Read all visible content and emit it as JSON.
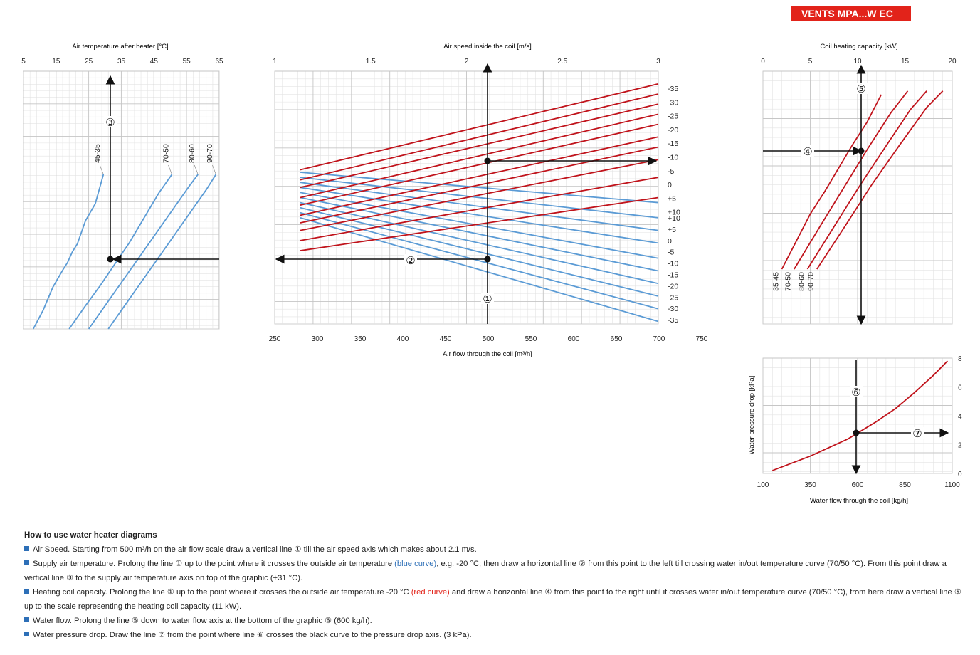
{
  "header": {
    "badge": "VENTS MPA...W EC"
  },
  "colors": {
    "accent": "#e2231a",
    "blue_curve": "#5b9bd5",
    "red_curve": "#c0131b"
  },
  "markers": {
    "1": "①",
    "2": "②",
    "3": "③",
    "4": "④",
    "5": "⑤",
    "6": "⑥",
    "7": "⑦"
  },
  "chart_data": [
    {
      "type": "line",
      "id": "air-temp",
      "title": "Air temperature after heater [°C]",
      "x_ticks": [
        5,
        15,
        25,
        35,
        45,
        55,
        65
      ],
      "xlim": [
        5,
        65
      ],
      "series": [
        {
          "name": "45-35",
          "points": [
            [
              8,
              0
            ],
            [
              11,
              0.12
            ],
            [
              14,
              0.27
            ],
            [
              17,
              0.38
            ],
            [
              18.5,
              0.43
            ],
            [
              20,
              0.5
            ],
            [
              21.5,
              0.55
            ],
            [
              24,
              0.7
            ],
            [
              27,
              0.81
            ],
            [
              29.5,
              1
            ]
          ]
        },
        {
          "name": "70-50",
          "points": [
            [
              19,
              0
            ],
            [
              24,
              0.15
            ],
            [
              28.5,
              0.28
            ],
            [
              33,
              0.42
            ],
            [
              37.5,
              0.56
            ],
            [
              42,
              0.72
            ],
            [
              46.5,
              0.88
            ],
            [
              50.5,
              1
            ]
          ]
        },
        {
          "name": "80-60",
          "points": [
            [
              25,
              0
            ],
            [
              30,
              0.15
            ],
            [
              35,
              0.3
            ],
            [
              40,
              0.45
            ],
            [
              45,
              0.6
            ],
            [
              50,
              0.75
            ],
            [
              56,
              0.93
            ],
            [
              58.5,
              1
            ]
          ]
        },
        {
          "name": "90-70",
          "points": [
            [
              31,
              0
            ],
            [
              36,
              0.15
            ],
            [
              41,
              0.3
            ],
            [
              46,
              0.45
            ],
            [
              51,
              0.6
            ],
            [
              56,
              0.75
            ],
            [
              61,
              0.9
            ],
            [
              64,
              1
            ]
          ]
        }
      ]
    },
    {
      "type": "line",
      "id": "air-speed",
      "title": "Air speed inside the coil [m/s]",
      "xlabel": "Air flow  through the coil [m³/h]",
      "top_ticks": [
        "1",
        "1.5",
        "2",
        "2.5",
        "3"
      ],
      "top_range": [
        1,
        3
      ],
      "bottom_ticks": [
        250,
        300,
        350,
        400,
        450,
        500,
        550,
        600,
        650,
        700,
        750
      ],
      "xlim": [
        250,
        750
      ],
      "red_labels": [
        "-35",
        "-30",
        "-25",
        "-20",
        "-15",
        "-10",
        "-5",
        "0",
        "+5",
        "+10"
      ],
      "blue_labels": [
        "+10",
        "+5",
        "0",
        "-5",
        "-10",
        "-15",
        "-20",
        "-25",
        "-30",
        "-35"
      ],
      "red_series": [
        {
          "name": "-35",
          "x": [
            280,
            700
          ],
          "y": [
            0.61,
            0.95
          ]
        },
        {
          "name": "-30",
          "x": [
            280,
            700
          ],
          "y": [
            0.57,
            0.91
          ]
        },
        {
          "name": "-25",
          "x": [
            280,
            700
          ],
          "y": [
            0.54,
            0.87
          ]
        },
        {
          "name": "-20",
          "x": [
            280,
            700
          ],
          "y": [
            0.5,
            0.83
          ]
        },
        {
          "name": "-15",
          "x": [
            280,
            700
          ],
          "y": [
            0.47,
            0.79
          ]
        },
        {
          "name": "-10",
          "x": [
            280,
            700
          ],
          "y": [
            0.43,
            0.74
          ]
        },
        {
          "name": "-5",
          "x": [
            280,
            700
          ],
          "y": [
            0.4,
            0.7
          ]
        },
        {
          "name": "0",
          "x": [
            280,
            700
          ],
          "y": [
            0.37,
            0.65
          ]
        },
        {
          "name": "+5",
          "x": [
            280,
            700
          ],
          "y": [
            0.33,
            0.58
          ]
        },
        {
          "name": "+10",
          "x": [
            280,
            700
          ],
          "y": [
            0.29,
            0.5
          ]
        }
      ],
      "blue_series": [
        {
          "name": "+10",
          "x": [
            280,
            700
          ],
          "y": [
            0.6,
            0.48
          ]
        },
        {
          "name": "+5",
          "x": [
            280,
            700
          ],
          "y": [
            0.58,
            0.42
          ]
        },
        {
          "name": "0",
          "x": [
            280,
            700
          ],
          "y": [
            0.56,
            0.37
          ]
        },
        {
          "name": "-5",
          "x": [
            280,
            700
          ],
          "y": [
            0.54,
            0.32
          ]
        },
        {
          "name": "-10",
          "x": [
            280,
            700
          ],
          "y": [
            0.52,
            0.26
          ]
        },
        {
          "name": "-15",
          "x": [
            280,
            700
          ],
          "y": [
            0.5,
            0.21
          ]
        },
        {
          "name": "-20",
          "x": [
            280,
            700
          ],
          "y": [
            0.48,
            0.16
          ]
        },
        {
          "name": "-25",
          "x": [
            280,
            700
          ],
          "y": [
            0.46,
            0.11
          ]
        },
        {
          "name": "-30",
          "x": [
            280,
            700
          ],
          "y": [
            0.44,
            0.06
          ]
        },
        {
          "name": "-35",
          "x": [
            280,
            700
          ],
          "y": [
            0.42,
            0.01
          ]
        }
      ]
    },
    {
      "type": "line",
      "id": "capacity",
      "title": "Coil heating capacity [kW]",
      "x_ticks": [
        0,
        5,
        10,
        15,
        20
      ],
      "xlim": [
        0,
        20
      ],
      "series": [
        {
          "name": "35-45",
          "points": [
            [
              2,
              0
            ],
            [
              5,
              0.3
            ],
            [
              6.5,
              0.42
            ],
            [
              8,
              0.55
            ],
            [
              9.5,
              0.68
            ],
            [
              11,
              0.8
            ],
            [
              12.5,
              0.95
            ]
          ]
        },
        {
          "name": "70-50",
          "points": [
            [
              3.3,
              0
            ],
            [
              6,
              0.23
            ],
            [
              8.5,
              0.44
            ],
            [
              11,
              0.65
            ],
            [
              13.5,
              0.85
            ],
            [
              15.3,
              0.97
            ]
          ]
        },
        {
          "name": "80-60",
          "points": [
            [
              4.7,
              0
            ],
            [
              7.5,
              0.23
            ],
            [
              10.3,
              0.46
            ],
            [
              13,
              0.67
            ],
            [
              15.6,
              0.87
            ],
            [
              17.3,
              0.97
            ]
          ]
        },
        {
          "name": "90-70",
          "points": [
            [
              5.7,
              0
            ],
            [
              8.5,
              0.22
            ],
            [
              11.5,
              0.46
            ],
            [
              14.5,
              0.68
            ],
            [
              17.3,
              0.88
            ],
            [
              19,
              0.97
            ]
          ]
        }
      ]
    },
    {
      "type": "line",
      "id": "pressure",
      "xlabel": "Water flow through the coil [kg/h]",
      "ylabel": "Water pressure drop [kPa]",
      "x_ticks": [
        100,
        350,
        600,
        850,
        1100
      ],
      "y_ticks": [
        0,
        2,
        4,
        6,
        8
      ],
      "xlim": [
        100,
        1100
      ],
      "ylim": [
        0,
        8
      ],
      "series": [
        {
          "name": "curve",
          "x": [
            150,
            250,
            350,
            450,
            550,
            600,
            700,
            800,
            900,
            1000,
            1075
          ],
          "y": [
            0.2,
            0.7,
            1.2,
            1.8,
            2.4,
            2.8,
            3.6,
            4.5,
            5.6,
            6.8,
            7.8
          ]
        }
      ]
    }
  ],
  "howto": {
    "title": "How to use water heater diagrams",
    "l1": "Air Speed. Starting from 500 m³/h on the air flow scale draw a vertical line ① till the air speed axis which makes about  2.1 m/s.",
    "l2a": "Supply air temperature. Prolong the line ① up to the point where it crosses the outside air temperature ",
    "l2b": "(blue curve)",
    "l2c": ", e.g. -20 °C; then draw a horizontal line ② from this point to the left till  crossing  water in/out temperature curve (70/50 °C). From this point draw a vertical line ③ to the supply air temperature axis on top of the graphic (+31 °C).",
    "l3a": "Heating coil capacity. Prolong the line ① up to the point where it crosses the outside air temperature -20 °C ",
    "l3b": "(red curve)",
    "l3c": " and draw a horizontal line ④ from this point to the right until it crosses water in/out temperature curve (70/50 °C), from here draw a vertical line ⑤ up to the scale representing the heating coil capacity (11 kW).",
    "l4": "Water flow. Prolong the line ⑤ down to water flow axis at the bottom of the graphic ⑥ (600 kg/h).",
    "l5": "Water pressure drop. Draw the line ⑦ from the point where line ⑥ crosses the black curve to the pressure drop axis. (3 kPa)."
  }
}
